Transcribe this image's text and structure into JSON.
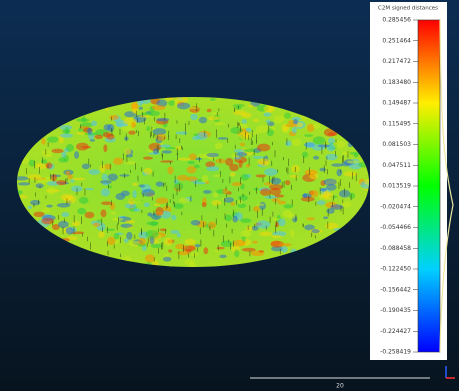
{
  "colorbar": {
    "title": "C2M signed distances",
    "ticks": [
      "0.285456",
      "0.251464",
      "0.217472",
      "0.183480",
      "0.149487",
      "0.115495",
      "0.081503",
      "0.047511",
      "0.013519",
      "-0.020474",
      "-0.054466",
      "-0.088458",
      "-0.122450",
      "-0.156442",
      "-0.190435",
      "-0.224427",
      "-0.258419"
    ]
  },
  "scale_bar": {
    "label": "20"
  }
}
